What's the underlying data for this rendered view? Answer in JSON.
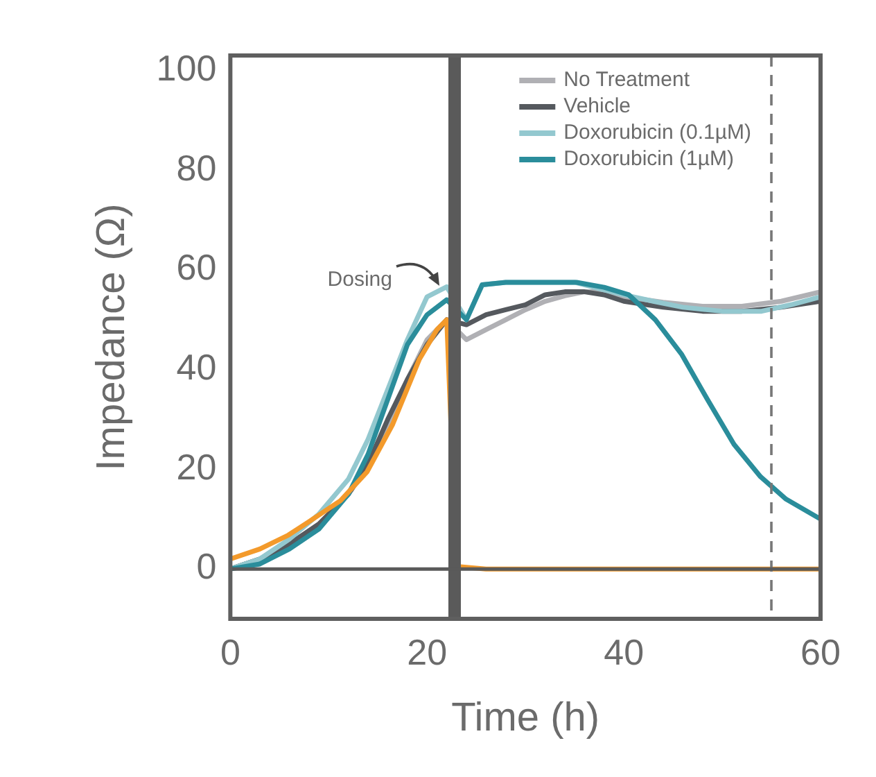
{
  "chart_data": {
    "type": "line",
    "xlabel": "Time (h)",
    "ylabel": "Impedance (Ω)",
    "xlim": [
      0,
      60
    ],
    "ylim": [
      -10,
      103
    ],
    "xticks": [
      0,
      20,
      40,
      60
    ],
    "yticks": [
      0,
      20,
      40,
      60,
      80,
      100
    ],
    "grid": false,
    "legend": "top right",
    "marker": "none",
    "line_style": "solid",
    "series": [
      {
        "name": "No Treatment",
        "color": "#b0b0b4",
        "x": [
          0,
          3,
          6,
          9,
          12,
          14,
          16,
          18,
          20,
          22,
          24,
          26,
          28,
          30,
          32,
          34,
          36,
          38,
          40,
          44,
          48,
          52,
          56,
          60
        ],
        "values": [
          0,
          2,
          5,
          9,
          15,
          21,
          29,
          38,
          46,
          50,
          46,
          48,
          50,
          52,
          53.7,
          54.8,
          55.6,
          55.6,
          54.6,
          53.5,
          52.7,
          52.7,
          53.7,
          55.6
        ]
      },
      {
        "name": "Vehicle",
        "color": "#55595e",
        "x": [
          0,
          3,
          6,
          9,
          12,
          14,
          16,
          18,
          20,
          22,
          24,
          26,
          28,
          30,
          32,
          34,
          36,
          38,
          40,
          44,
          48,
          52,
          56,
          60
        ],
        "values": [
          0,
          2,
          5,
          9,
          15,
          21,
          30,
          38,
          45,
          50,
          49,
          51,
          52,
          53,
          55,
          55.6,
          55.6,
          55,
          53.7,
          52.5,
          51.7,
          51.7,
          52.5,
          53.7
        ]
      },
      {
        "name": "Doxorubicin (0.1µM)",
        "color": "#93c8cf",
        "x": [
          0,
          3,
          6,
          9,
          12,
          14,
          16,
          18,
          20,
          22,
          24,
          25.6,
          28,
          32,
          35,
          38,
          40,
          43,
          46,
          50,
          54,
          57,
          60
        ],
        "values": [
          0,
          2,
          6,
          11,
          18,
          26,
          36,
          46,
          54.6,
          56.6,
          50,
          57,
          57.5,
          57.5,
          57.5,
          56,
          55,
          53.7,
          52.5,
          51.7,
          51.7,
          53,
          54.6
        ]
      },
      {
        "name": "Doxorubicin (1µM)",
        "color": "#2a8d9b",
        "x": [
          0,
          3,
          6,
          9,
          12,
          14,
          16,
          18,
          20,
          22,
          24,
          25.6,
          28,
          32,
          35.2,
          38,
          40.5,
          43.2,
          45.9,
          48.5,
          51.2,
          53.9,
          56.5,
          60
        ],
        "values": [
          0,
          1,
          4,
          8,
          15,
          23,
          34,
          45,
          51,
          54,
          50,
          57,
          57.5,
          57.5,
          57.5,
          56.5,
          55,
          50,
          43,
          34,
          25,
          18.5,
          14,
          10
        ]
      },
      {
        "color": "#f39a2b",
        "x": [
          0,
          3,
          5.9,
          8,
          11.2,
          13.9,
          16.5,
          19.2,
          21,
          22,
          23,
          26,
          30,
          35,
          40,
          45,
          50,
          55,
          60
        ],
        "values": [
          2,
          4,
          6.8,
          9.5,
          13.7,
          19.5,
          29,
          42,
          48,
          50,
          0.5,
          0,
          0,
          0,
          0,
          0,
          0,
          0,
          0
        ]
      }
    ],
    "ref_lines": [
      {
        "axis": "x",
        "value": 22.8,
        "label": "Dosing",
        "color": "#5a5a5a",
        "line_style": "solid"
      },
      {
        "axis": "x",
        "value": 55,
        "color": "#777777",
        "line_style": "dashed"
      },
      {
        "axis": "y",
        "value": 0,
        "color": "#5a5a5a",
        "line_style": "solid"
      }
    ]
  }
}
